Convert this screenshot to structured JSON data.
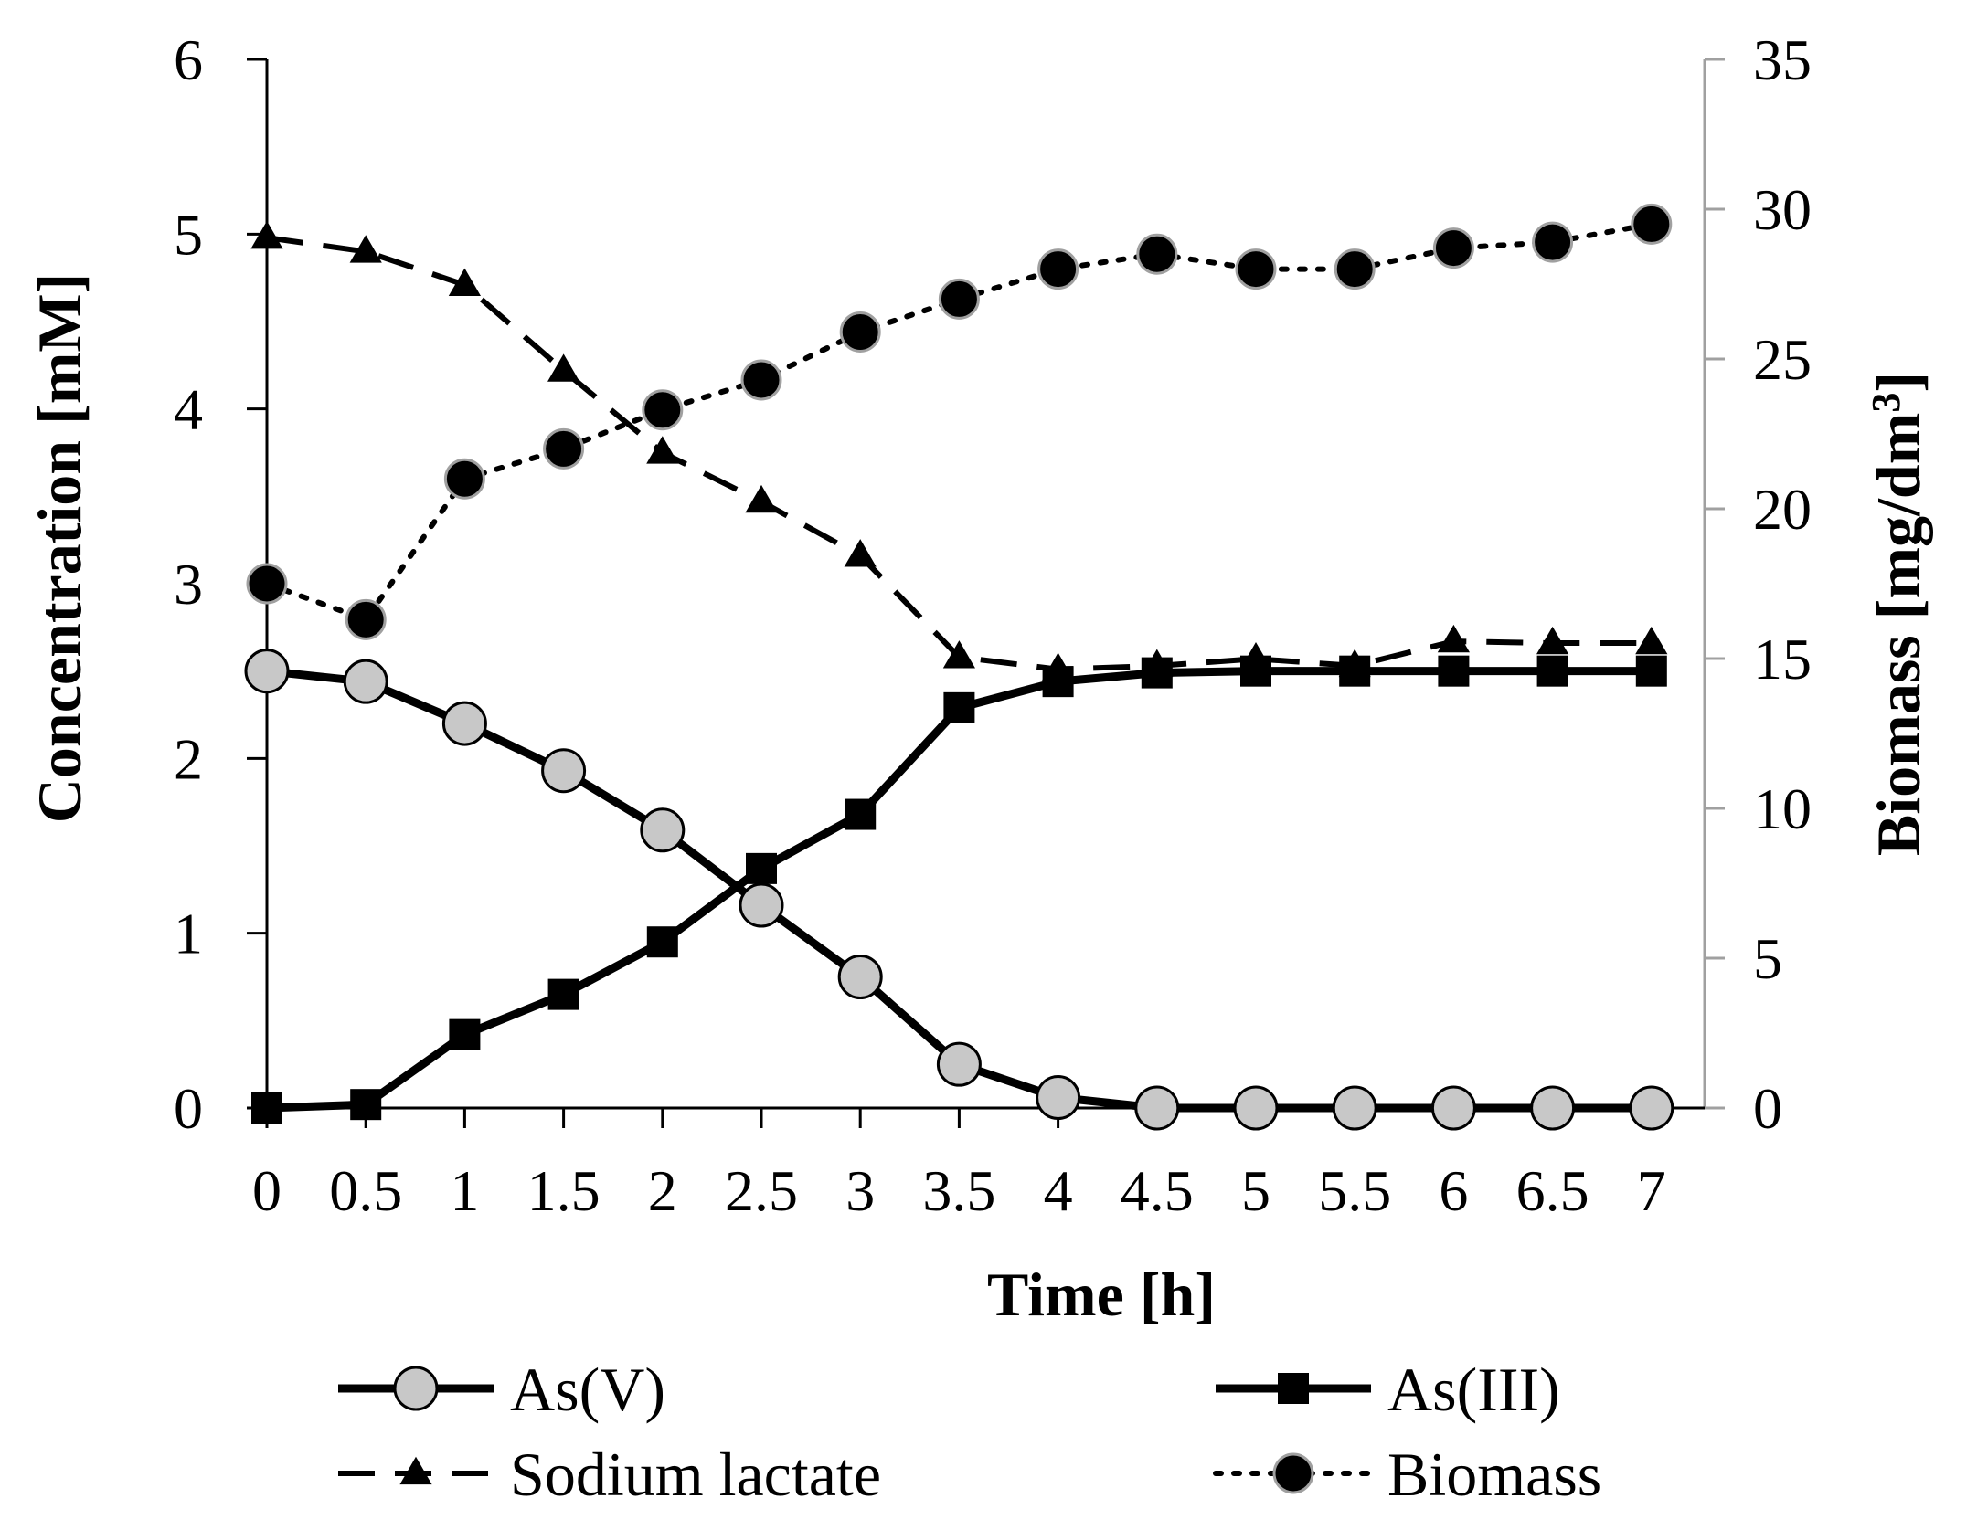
{
  "chart_data": {
    "type": "line",
    "x": [
      0,
      0.5,
      1,
      1.5,
      2,
      2.5,
      3,
      3.5,
      4,
      4.5,
      5,
      5.5,
      6,
      6.5,
      7
    ],
    "x_tick_labels": [
      "0",
      "0.5",
      "1",
      "1.5",
      "2",
      "2.5",
      "3",
      "3.5",
      "4",
      "4.5",
      "5",
      "5.5",
      "6",
      "6.5",
      "7"
    ],
    "xlabel": "Time [h]",
    "ylabel_left": "Concentration [mM]",
    "ylabel_right_main": "Biomass [mg/dm",
    "ylabel_right_sup": "3",
    "ylabel_right_close": "]",
    "ylim_left": [
      0,
      6
    ],
    "y_ticks_left": [
      "0",
      "1",
      "2",
      "3",
      "4",
      "5",
      "6"
    ],
    "ylim_right": [
      0,
      35
    ],
    "y_ticks_right": [
      "0",
      "5",
      "10",
      "15",
      "20",
      "25",
      "30",
      "35"
    ],
    "grid": false,
    "legend_position": "bottom",
    "colors": {
      "line": "#000000",
      "marker_gray": "#c8c8c8",
      "marker_outline_gray": "#a0a0a0",
      "right_axis": "#a0a0a0"
    },
    "series": [
      {
        "name": "As(V)",
        "axis": "left",
        "style": "solid",
        "marker": "circle-gray",
        "values": [
          2.5,
          2.44,
          2.2,
          1.93,
          1.59,
          1.16,
          0.75,
          0.25,
          0.06,
          0,
          0,
          0,
          0,
          0,
          0
        ]
      },
      {
        "name": "As(III)",
        "axis": "left",
        "style": "solid",
        "marker": "square-black",
        "values": [
          0,
          0.02,
          0.42,
          0.65,
          0.95,
          1.37,
          1.68,
          2.29,
          2.44,
          2.49,
          2.5,
          2.5,
          2.5,
          2.5,
          2.5
        ]
      },
      {
        "name": "Sodium lactate",
        "axis": "left",
        "style": "dashed",
        "marker": "triangle-black",
        "values": [
          4.98,
          4.9,
          4.71,
          4.22,
          3.75,
          3.47,
          3.16,
          2.58,
          2.51,
          2.53,
          2.57,
          2.53,
          2.67,
          2.66,
          2.66
        ]
      },
      {
        "name": "Biomass",
        "axis": "right",
        "style": "dotted",
        "marker": "circle-black",
        "values": [
          17.5,
          16.3,
          21.0,
          22.0,
          23.3,
          24.3,
          25.9,
          27.0,
          28.0,
          28.5,
          28.0,
          28.0,
          28.7,
          28.9,
          29.5
        ]
      }
    ]
  }
}
